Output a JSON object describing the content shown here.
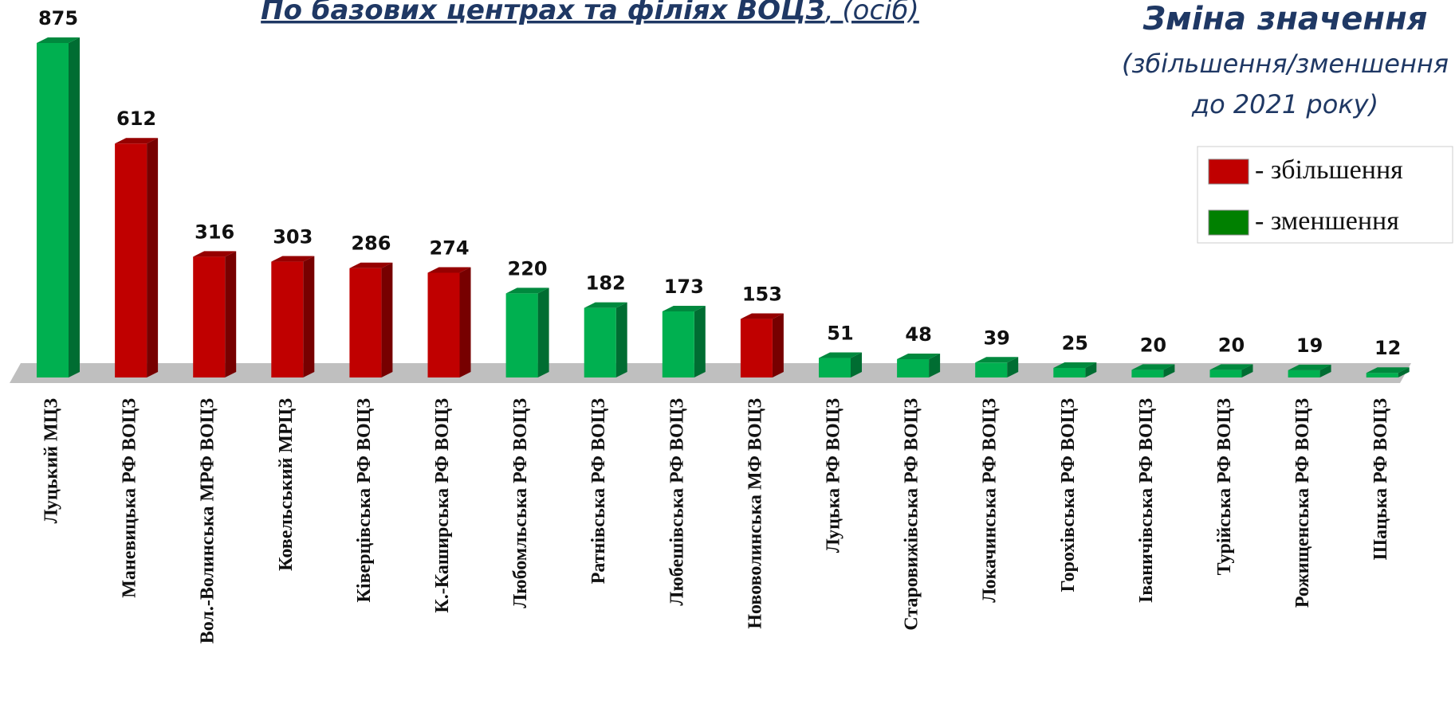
{
  "chart_data": {
    "type": "bar",
    "title": "По базових центрах та філіях ВОЦЗ",
    "title_note": ", (осіб)",
    "side_title": "Зміна значення",
    "side_subtitle": [
      "(збільшення/зменшення",
      "до 2021 року)"
    ],
    "categories": [
      "Луцький  МЦЗ",
      "Маневицька РФ  ВОЦЗ",
      "Вол.-Волинська МРФ  ВОЦЗ",
      "Ковельський МРЦЗ",
      "Ківерцівська РФ  ВОЦЗ",
      "К.-Каширська РФ  ВОЦЗ",
      "Любомльська РФ  ВОЦЗ",
      "Ратнівська РФ  ВОЦЗ",
      "Любешівська РФ  ВОЦЗ",
      "Нововолинська МФ ВОЦЗ",
      "Луцька РФ  ВОЦЗ",
      "Старовижівська РФ  ВОЦЗ",
      "Локачинська РФ  ВОЦЗ",
      "Горохівська РФ  ВОЦЗ",
      "Іваничівська РФ  ВОЦЗ",
      "Турійська РФ  ВОЦЗ",
      "Рожищенська РФ  ВОЦЗ",
      "Шацька РФ  ВОЦЗ"
    ],
    "values": [
      875,
      612,
      316,
      303,
      286,
      274,
      220,
      182,
      173,
      153,
      51,
      48,
      39,
      25,
      20,
      20,
      19,
      12
    ],
    "colors": [
      "#00b050",
      "#c00000",
      "#c00000",
      "#c00000",
      "#c00000",
      "#c00000",
      "#00b050",
      "#00b050",
      "#00b050",
      "#c00000",
      "#00b050",
      "#00b050",
      "#00b050",
      "#00b050",
      "#00b050",
      "#00b050",
      "#00b050",
      "#00b050"
    ],
    "legend": [
      {
        "label": "- збільшення",
        "color": "#c00000"
      },
      {
        "label": "- зменшення",
        "color": "#008000"
      }
    ]
  }
}
